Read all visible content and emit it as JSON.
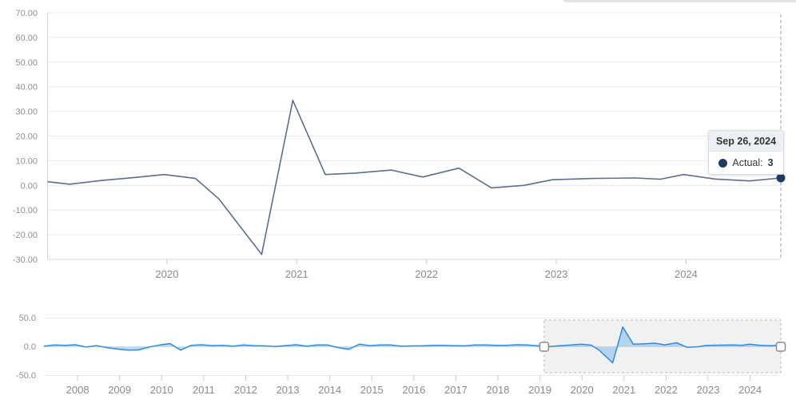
{
  "tooltip": {
    "date": "Sep 26, 2024",
    "series_label": "Actual:",
    "value": "3"
  },
  "colors": {
    "main_line": "#5b6e8f",
    "marker": "#1f3b61",
    "nav_line": "#2e8be0",
    "nav_fill": "rgba(121,181,235,0.5)",
    "selection_fill": "rgba(0,0,0,0.055)",
    "selection_border": "#b6b6b6",
    "grid": "#e9e9e9",
    "axis": "#d4d4d4",
    "tick": "#cccccc",
    "crosshair": "#9f9f9f"
  },
  "chart_data": [
    {
      "id": "main",
      "type": "line",
      "title": "",
      "xlabel": "",
      "ylabel": "",
      "grid": true,
      "legend": "none",
      "xlim": [
        2019.08,
        2024.73
      ],
      "ylim": [
        -30,
        70
      ],
      "y_ticks": [
        [
          70,
          "70.00"
        ],
        [
          60,
          "60.00"
        ],
        [
          50,
          "50.00"
        ],
        [
          40,
          "40.00"
        ],
        [
          30,
          "30.00"
        ],
        [
          20,
          "20.00"
        ],
        [
          10,
          "10.00"
        ],
        [
          0,
          "0.00"
        ],
        [
          -10,
          "-10.00"
        ],
        [
          -20,
          "-20.00"
        ],
        [
          -30,
          "-30.00"
        ]
      ],
      "x_ticks": [
        [
          2020,
          "2020"
        ],
        [
          2021,
          "2021"
        ],
        [
          2022,
          "2022"
        ],
        [
          2023,
          "2023"
        ],
        [
          2024,
          "2024"
        ]
      ],
      "crosshair_x": 2024.73,
      "series": [
        {
          "name": "Actual",
          "points": [
            [
              2019.08,
              1.5
            ],
            [
              2019.25,
              0.5
            ],
            [
              2019.5,
              2.0
            ],
            [
              2019.75,
              3.2
            ],
            [
              2019.98,
              4.4
            ],
            [
              2020.22,
              2.8
            ],
            [
              2020.4,
              -5.5
            ],
            [
              2020.73,
              -28.0
            ],
            [
              2020.97,
              34.5
            ],
            [
              2021.22,
              4.4
            ],
            [
              2021.45,
              5.0
            ],
            [
              2021.73,
              6.2
            ],
            [
              2021.97,
              3.4
            ],
            [
              2022.25,
              7.0
            ],
            [
              2022.5,
              -1.0
            ],
            [
              2022.75,
              0.0
            ],
            [
              2022.97,
              2.3
            ],
            [
              2023.29,
              2.8
            ],
            [
              2023.61,
              3.0
            ],
            [
              2023.8,
              2.5
            ],
            [
              2023.98,
              4.4
            ],
            [
              2024.22,
              2.6
            ],
            [
              2024.49,
              1.8
            ],
            [
              2024.73,
              3.0
            ]
          ]
        }
      ],
      "end_marker": {
        "x": 2024.73,
        "y": 3.0
      }
    },
    {
      "id": "navigator",
      "type": "area",
      "title": "",
      "xlabel": "",
      "ylabel": "",
      "grid": true,
      "legend": "none",
      "xlim": [
        2007.2,
        2024.73
      ],
      "ylim": [
        -50,
        50
      ],
      "y_ticks": [
        [
          50,
          "50.0"
        ],
        [
          0,
          "0.0"
        ],
        [
          -50,
          "-50.0"
        ]
      ],
      "x_ticks": [
        [
          2008,
          "2008"
        ],
        [
          2009,
          "2009"
        ],
        [
          2010,
          "2010"
        ],
        [
          2011,
          "2011"
        ],
        [
          2012,
          "2012"
        ],
        [
          2013,
          "2013"
        ],
        [
          2014,
          "2014"
        ],
        [
          2015,
          "2015"
        ],
        [
          2016,
          "2016"
        ],
        [
          2017,
          "2017"
        ],
        [
          2018,
          "2018"
        ],
        [
          2019,
          "2019"
        ],
        [
          2020,
          "2020"
        ],
        [
          2021,
          "2021"
        ],
        [
          2022,
          "2022"
        ],
        [
          2023,
          "2023"
        ],
        [
          2024,
          "2024"
        ]
      ],
      "selected_range": [
        2019.1,
        2024.73
      ],
      "series": [
        {
          "name": "Actual",
          "points": [
            [
              2007.2,
              1.0
            ],
            [
              2007.45,
              3.0
            ],
            [
              2007.7,
              2.5
            ],
            [
              2007.95,
              3.5
            ],
            [
              2008.2,
              -0.5
            ],
            [
              2008.45,
              2.0
            ],
            [
              2008.7,
              -1.5
            ],
            [
              2008.95,
              -4.0
            ],
            [
              2009.2,
              -6.0
            ],
            [
              2009.45,
              -5.5
            ],
            [
              2009.7,
              -0.5
            ],
            [
              2009.95,
              3.0
            ],
            [
              2010.2,
              5.5
            ],
            [
              2010.45,
              -6.0
            ],
            [
              2010.7,
              2.5
            ],
            [
              2010.95,
              3.5
            ],
            [
              2011.2,
              2.0
            ],
            [
              2011.45,
              2.5
            ],
            [
              2011.7,
              1.0
            ],
            [
              2011.95,
              3.0
            ],
            [
              2012.2,
              2.0
            ],
            [
              2012.45,
              1.5
            ],
            [
              2012.7,
              0.5
            ],
            [
              2012.95,
              2.0
            ],
            [
              2013.2,
              3.5
            ],
            [
              2013.45,
              1.0
            ],
            [
              2013.7,
              3.0
            ],
            [
              2013.95,
              3.0
            ],
            [
              2014.2,
              -1.5
            ],
            [
              2014.45,
              -4.5
            ],
            [
              2014.7,
              4.5
            ],
            [
              2014.95,
              2.0
            ],
            [
              2015.2,
              3.0
            ],
            [
              2015.45,
              3.0
            ],
            [
              2015.7,
              1.0
            ],
            [
              2015.95,
              1.5
            ],
            [
              2016.2,
              1.5
            ],
            [
              2016.45,
              2.5
            ],
            [
              2016.7,
              2.5
            ],
            [
              2016.95,
              2.0
            ],
            [
              2017.2,
              1.5
            ],
            [
              2017.45,
              3.0
            ],
            [
              2017.7,
              3.0
            ],
            [
              2017.95,
              2.5
            ],
            [
              2018.2,
              2.5
            ],
            [
              2018.45,
              3.5
            ],
            [
              2018.7,
              3.0
            ],
            [
              2018.95,
              1.5
            ],
            [
              2019.08,
              1.5
            ],
            [
              2019.25,
              0.5
            ],
            [
              2019.5,
              2.0
            ],
            [
              2019.75,
              3.2
            ],
            [
              2019.98,
              4.4
            ],
            [
              2020.22,
              2.8
            ],
            [
              2020.4,
              -5.5
            ],
            [
              2020.73,
              -28.0
            ],
            [
              2020.97,
              34.5
            ],
            [
              2021.22,
              4.4
            ],
            [
              2021.45,
              5.0
            ],
            [
              2021.73,
              6.2
            ],
            [
              2021.97,
              3.4
            ],
            [
              2022.25,
              7.0
            ],
            [
              2022.5,
              -1.0
            ],
            [
              2022.75,
              0.0
            ],
            [
              2022.97,
              2.3
            ],
            [
              2023.29,
              2.8
            ],
            [
              2023.61,
              3.0
            ],
            [
              2023.8,
              2.5
            ],
            [
              2023.98,
              4.4
            ],
            [
              2024.22,
              2.6
            ],
            [
              2024.49,
              1.8
            ],
            [
              2024.73,
              3.0
            ]
          ]
        }
      ]
    }
  ]
}
